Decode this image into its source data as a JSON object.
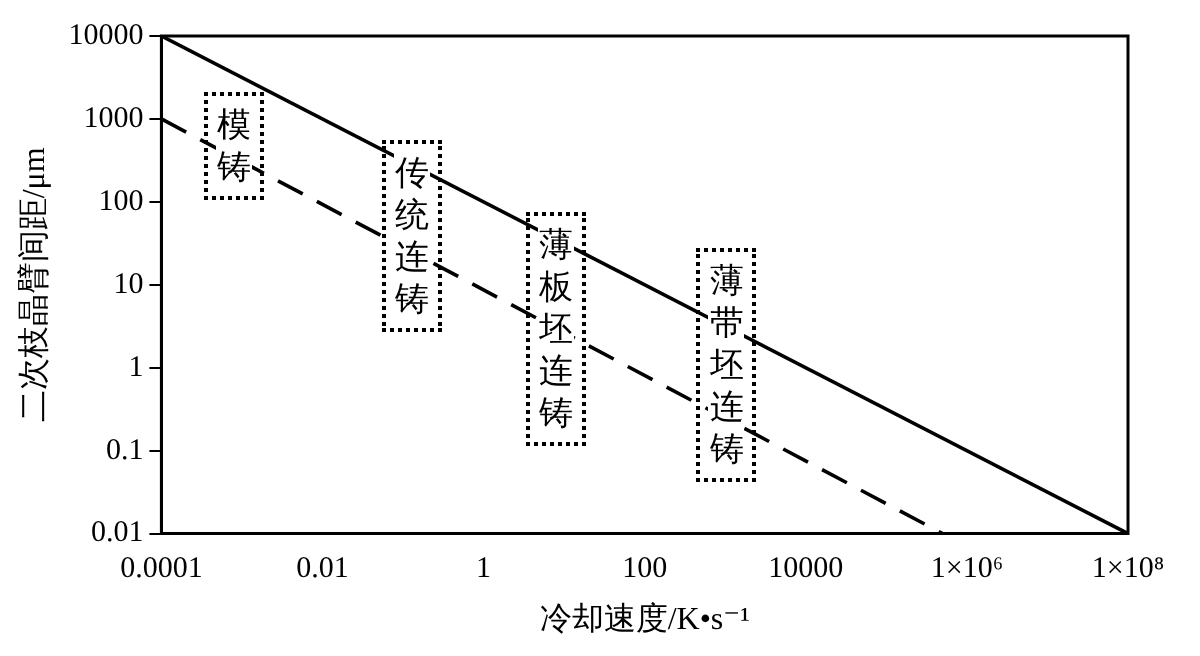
{
  "chart_data": {
    "type": "line",
    "xlabel": "冷却速度/K•s⁻¹",
    "ylabel": "二次枝晶臂间距/μm",
    "log": "xy",
    "grid": false,
    "legend": false,
    "marker": "none",
    "xlim": [
      0.0001,
      100000000
    ],
    "ylim": [
      0.01,
      10000
    ],
    "xticks": [
      0.0001,
      0.01,
      1,
      100,
      10000,
      {
        "value": 1000000,
        "label": "1×10⁶"
      },
      {
        "value": 100000000,
        "label": "1×10⁸"
      }
    ],
    "yticks": [
      0.01,
      0.1,
      1,
      10,
      100,
      1000,
      10000
    ],
    "series": [
      {
        "color": "#000000",
        "line_style": "solid",
        "x": [
          0.0001,
          100000000
        ],
        "values": [
          10000,
          0.01
        ]
      },
      {
        "color": "#000000",
        "line_style": "dashed",
        "x": [
          0.0001,
          500000
        ],
        "values": [
          1000,
          0.01
        ]
      }
    ],
    "annotations": [
      "模铸",
      "传统连铸",
      "薄板坯连铸",
      "薄带坯连铸"
    ]
  }
}
